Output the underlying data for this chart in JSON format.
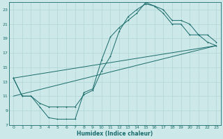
{
  "xlabel": "Humidex (Indice chaleur)",
  "bg_color": "#cce8e8",
  "grid_color": "#b0d4d4",
  "line_color": "#1a6b6b",
  "xlim": [
    -0.5,
    23.5
  ],
  "ylim": [
    7,
    24
  ],
  "xticks": [
    0,
    1,
    2,
    3,
    4,
    5,
    6,
    7,
    8,
    9,
    10,
    11,
    12,
    13,
    14,
    15,
    16,
    17,
    18,
    19,
    20,
    21,
    22,
    23
  ],
  "yticks": [
    7,
    9,
    11,
    13,
    15,
    17,
    19,
    21,
    23
  ],
  "line1_x": [
    0,
    1,
    2,
    3,
    4,
    5,
    6,
    7,
    8,
    9,
    10,
    11,
    12,
    13,
    14,
    15,
    16,
    17,
    18,
    19,
    20,
    21,
    22,
    23
  ],
  "line1_y": [
    13.5,
    11.0,
    11.0,
    9.5,
    8.0,
    7.8,
    7.8,
    7.8,
    11.5,
    12.0,
    16.0,
    19.2,
    20.5,
    21.5,
    22.5,
    24.0,
    23.5,
    22.5,
    21.0,
    21.0,
    19.5,
    19.5,
    18.5,
    18.0
  ],
  "line2_x": [
    0,
    1,
    2,
    3,
    4,
    5,
    6,
    7,
    8,
    9,
    10,
    11,
    12,
    13,
    14,
    15,
    16,
    17,
    18,
    19,
    20,
    21,
    22,
    23
  ],
  "line2_y": [
    13.5,
    11.0,
    11.0,
    10.0,
    9.5,
    9.5,
    9.5,
    9.5,
    11.2,
    11.8,
    14.5,
    16.5,
    20.0,
    22.0,
    23.0,
    23.8,
    23.5,
    23.0,
    21.5,
    21.5,
    21.0,
    19.5,
    19.5,
    18.5
  ],
  "line3_x": [
    0,
    23
  ],
  "line3_y": [
    13.5,
    18.0
  ],
  "line4_x": [
    0,
    23
  ],
  "line4_y": [
    11.0,
    18.0
  ]
}
